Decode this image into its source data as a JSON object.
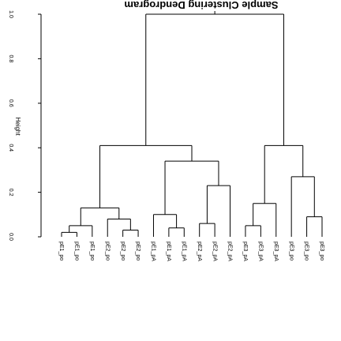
{
  "chart_data": {
    "type": "dendrogram",
    "title": "Sample Clustering Dendrogram",
    "ylabel": "Height",
    "ylim": [
      0,
      1
    ],
    "yticks": [
      {
        "value": 0,
        "label": "0.0"
      },
      {
        "value": 0.2,
        "label": "0.2"
      },
      {
        "value": 0.4,
        "label": "0.4"
      },
      {
        "value": 0.6,
        "label": "0.6"
      },
      {
        "value": 0.8,
        "label": "0.8"
      },
      {
        "value": 1,
        "label": "1.0"
      }
    ],
    "color": "#000000",
    "tree": {
      "height": 1.0,
      "children": [
        {
          "height": 0.41,
          "children": [
            {
              "height": 0.13,
              "children": [
                {
                  "height": 0.05,
                  "children": [
                    {
                      "height": 0.02,
                      "children": [
                        {
                          "label": "pE1_po"
                        },
                        {
                          "label": "pE1_po"
                        }
                      ]
                    },
                    {
                      "label": "pE1_po"
                    }
                  ]
                },
                {
                  "height": 0.08,
                  "children": [
                    {
                      "label": "pE2_po"
                    },
                    {
                      "height": 0.03,
                      "children": [
                        {
                          "label": "pE2_po"
                        },
                        {
                          "label": "pE2_po"
                        }
                      ]
                    }
                  ]
                }
              ]
            },
            {
              "height": 0.34,
              "children": [
                {
                  "height": 0.1,
                  "children": [
                    {
                      "label": "pE1_pA"
                    },
                    {
                      "height": 0.04,
                      "children": [
                        {
                          "label": "pE1_pA"
                        },
                        {
                          "label": "pE1_pA"
                        }
                      ]
                    }
                  ]
                },
                {
                  "height": 0.23,
                  "children": [
                    {
                      "height": 0.06,
                      "children": [
                        {
                          "label": "pE2_pA"
                        },
                        {
                          "label": "pE2_pA"
                        }
                      ]
                    },
                    {
                      "label": "pE2_pA"
                    }
                  ]
                }
              ]
            }
          ]
        },
        {
          "height": 0.41,
          "children": [
            {
              "height": 0.15,
              "children": [
                {
                  "height": 0.05,
                  "children": [
                    {
                      "label": "pE3_pA"
                    },
                    {
                      "label": "pE3_pA"
                    }
                  ]
                },
                {
                  "label": "pE3_pA"
                }
              ]
            },
            {
              "height": 0.27,
              "children": [
                {
                  "label": "pE3_po"
                },
                {
                  "height": 0.09,
                  "children": [
                    {
                      "label": "pE3_po"
                    },
                    {
                      "label": "pE3_po"
                    }
                  ]
                }
              ]
            }
          ]
        }
      ]
    }
  }
}
